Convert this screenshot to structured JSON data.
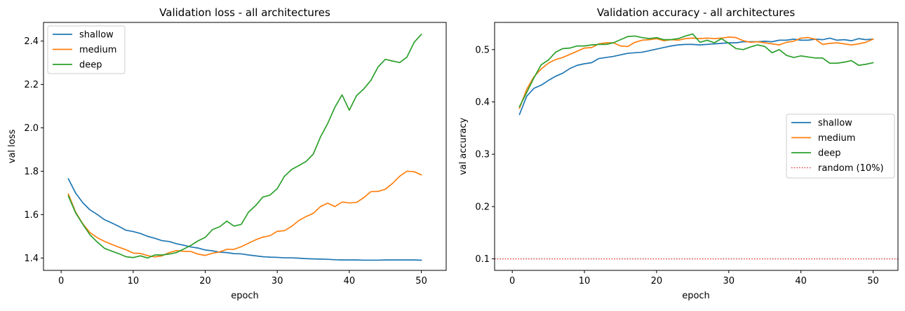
{
  "chart_data": [
    {
      "type": "line",
      "title": "Validation loss - all architectures",
      "xlabel": "epoch",
      "ylabel": "val loss",
      "xlim": [
        -2.45,
        53.45
      ],
      "ylim": [
        1.343,
        2.486
      ],
      "xticks": [
        0,
        10,
        20,
        30,
        40,
        50
      ],
      "xtick_labels": [
        "0",
        "10",
        "20",
        "30",
        "40",
        "50"
      ],
      "yticks": [
        1.4,
        1.6,
        1.8,
        2.0,
        2.2,
        2.4
      ],
      "ytick_labels": [
        "1.4",
        "1.6",
        "1.8",
        "2.0",
        "2.2",
        "2.4"
      ],
      "grid": false,
      "legend": "top-left",
      "x": [
        1,
        2,
        3,
        4,
        5,
        6,
        7,
        8,
        9,
        10,
        11,
        12,
        13,
        14,
        15,
        16,
        17,
        18,
        19,
        20,
        21,
        22,
        23,
        24,
        25,
        26,
        27,
        28,
        29,
        30,
        31,
        32,
        33,
        34,
        35,
        36,
        37,
        38,
        39,
        40,
        41,
        42,
        43,
        44,
        45,
        46,
        47,
        48,
        49,
        50
      ],
      "series": [
        {
          "name": "shallow",
          "color": "#1f77b4",
          "values": [
            1.765,
            1.7,
            1.655,
            1.622,
            1.601,
            1.577,
            1.562,
            1.546,
            1.528,
            1.522,
            1.513,
            1.5,
            1.491,
            1.48,
            1.476,
            1.466,
            1.459,
            1.451,
            1.446,
            1.437,
            1.433,
            1.427,
            1.425,
            1.42,
            1.419,
            1.414,
            1.41,
            1.406,
            1.404,
            1.403,
            1.401,
            1.401,
            1.399,
            1.397,
            1.396,
            1.395,
            1.394,
            1.392,
            1.391,
            1.391,
            1.391,
            1.39,
            1.39,
            1.39,
            1.391,
            1.391,
            1.391,
            1.391,
            1.391,
            1.39
          ]
        },
        {
          "name": "medium",
          "color": "#ff7f0e",
          "values": [
            1.695,
            1.612,
            1.558,
            1.517,
            1.494,
            1.477,
            1.463,
            1.45,
            1.438,
            1.423,
            1.421,
            1.411,
            1.405,
            1.41,
            1.425,
            1.434,
            1.431,
            1.43,
            1.418,
            1.412,
            1.422,
            1.428,
            1.44,
            1.44,
            1.452,
            1.468,
            1.484,
            1.496,
            1.503,
            1.523,
            1.526,
            1.546,
            1.573,
            1.591,
            1.606,
            1.637,
            1.653,
            1.637,
            1.658,
            1.654,
            1.656,
            1.678,
            1.706,
            1.707,
            1.717,
            1.744,
            1.777,
            1.8,
            1.798,
            1.783
          ]
        },
        {
          "name": "deep",
          "color": "#2ca02c",
          "values": [
            1.686,
            1.609,
            1.556,
            1.507,
            1.474,
            1.445,
            1.432,
            1.42,
            1.406,
            1.402,
            1.41,
            1.4,
            1.414,
            1.414,
            1.418,
            1.425,
            1.441,
            1.458,
            1.479,
            1.495,
            1.531,
            1.544,
            1.57,
            1.547,
            1.555,
            1.611,
            1.642,
            1.681,
            1.69,
            1.72,
            1.777,
            1.808,
            1.826,
            1.845,
            1.879,
            1.958,
            2.02,
            2.095,
            2.152,
            2.081,
            2.148,
            2.179,
            2.219,
            2.281,
            2.316,
            2.308,
            2.301,
            2.326,
            2.394,
            2.431
          ]
        }
      ]
    },
    {
      "type": "line",
      "title": "Validation accuracy - all architectures",
      "xlabel": "epoch",
      "ylabel": "val accuracy",
      "xlim": [
        -2.45,
        53.45
      ],
      "ylim": [
        0.078,
        0.552
      ],
      "xticks": [
        0,
        10,
        20,
        30,
        40,
        50
      ],
      "xtick_labels": [
        "0",
        "10",
        "20",
        "30",
        "40",
        "50"
      ],
      "yticks": [
        0.1,
        0.2,
        0.3,
        0.4,
        0.5
      ],
      "ytick_labels": [
        "0.1",
        "0.2",
        "0.3",
        "0.4",
        "0.5"
      ],
      "grid": false,
      "legend": "center-right",
      "x": [
        1,
        2,
        3,
        4,
        5,
        6,
        7,
        8,
        9,
        10,
        11,
        12,
        13,
        14,
        15,
        16,
        17,
        18,
        19,
        20,
        21,
        22,
        23,
        24,
        25,
        26,
        27,
        28,
        29,
        30,
        31,
        32,
        33,
        34,
        35,
        36,
        37,
        38,
        39,
        40,
        41,
        42,
        43,
        44,
        45,
        46,
        47,
        48,
        49,
        50
      ],
      "series": [
        {
          "name": "shallow",
          "color": "#1f77b4",
          "values": [
            0.376,
            0.411,
            0.426,
            0.432,
            0.441,
            0.449,
            0.455,
            0.464,
            0.47,
            0.473,
            0.475,
            0.483,
            0.485,
            0.487,
            0.49,
            0.493,
            0.494,
            0.495,
            0.498,
            0.501,
            0.504,
            0.507,
            0.509,
            0.51,
            0.51,
            0.509,
            0.51,
            0.511,
            0.512,
            0.513,
            0.513,
            0.515,
            0.515,
            0.515,
            0.516,
            0.515,
            0.518,
            0.518,
            0.52,
            0.518,
            0.518,
            0.52,
            0.519,
            0.522,
            0.518,
            0.519,
            0.517,
            0.521,
            0.519,
            0.52
          ]
        },
        {
          "name": "medium",
          "color": "#ff7f0e",
          "values": [
            0.388,
            0.424,
            0.448,
            0.463,
            0.474,
            0.481,
            0.485,
            0.491,
            0.497,
            0.503,
            0.504,
            0.511,
            0.513,
            0.513,
            0.507,
            0.506,
            0.514,
            0.518,
            0.519,
            0.521,
            0.517,
            0.519,
            0.518,
            0.521,
            0.522,
            0.521,
            0.522,
            0.521,
            0.522,
            0.524,
            0.523,
            0.517,
            0.514,
            0.515,
            0.513,
            0.511,
            0.509,
            0.514,
            0.516,
            0.522,
            0.523,
            0.52,
            0.51,
            0.512,
            0.513,
            0.511,
            0.509,
            0.511,
            0.514,
            0.52
          ]
        },
        {
          "name": "deep",
          "color": "#2ca02c",
          "values": [
            0.391,
            0.418,
            0.446,
            0.471,
            0.48,
            0.495,
            0.502,
            0.503,
            0.507,
            0.507,
            0.509,
            0.51,
            0.51,
            0.513,
            0.519,
            0.525,
            0.526,
            0.523,
            0.521,
            0.523,
            0.519,
            0.519,
            0.521,
            0.526,
            0.53,
            0.514,
            0.518,
            0.513,
            0.521,
            0.512,
            0.502,
            0.5,
            0.505,
            0.509,
            0.506,
            0.494,
            0.5,
            0.489,
            0.485,
            0.488,
            0.486,
            0.484,
            0.484,
            0.474,
            0.474,
            0.476,
            0.479,
            0.47,
            0.472,
            0.475
          ]
        },
        {
          "name": "random (10%)",
          "color": "#d62728",
          "style": "dotted",
          "hline": 0.1
        }
      ]
    }
  ]
}
